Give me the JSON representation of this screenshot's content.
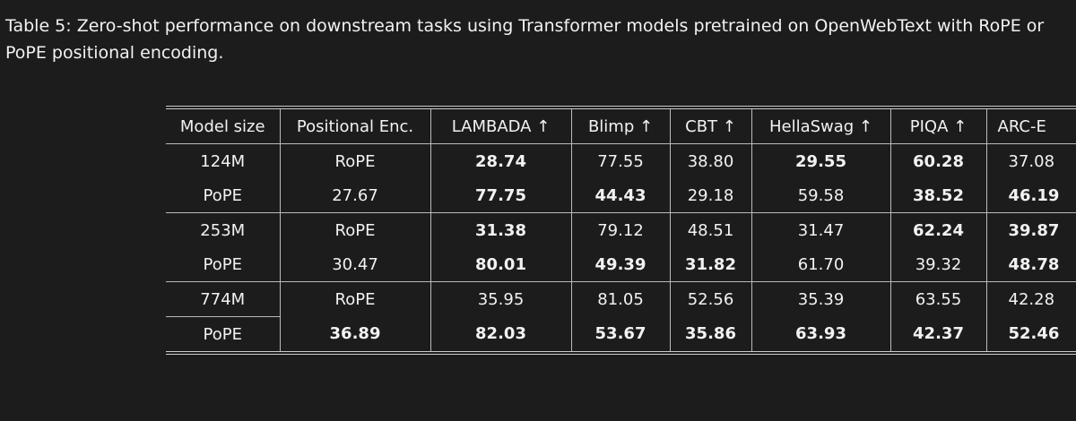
{
  "caption": "Table 5: Zero-shot performance on downstream tasks using Transformer models pretrained on OpenWebText with RoPE or PoPE positional encoding.",
  "table": {
    "header": [
      "Model size",
      "Positional Enc.",
      "LAMBADA ↑",
      "Blimp ↑",
      "CBT ↑",
      "HellaSwag ↑",
      "PIQA ↑",
      "ARC-E"
    ],
    "rows": [
      [
        {
          "text": "124M",
          "bold": false
        },
        {
          "text": "RoPE",
          "bold": false
        },
        {
          "text": "28.74",
          "bold": true
        },
        {
          "text": "77.55",
          "bold": false
        },
        {
          "text": "38.80",
          "bold": false
        },
        {
          "text": "29.55",
          "bold": true
        },
        {
          "text": "60.28",
          "bold": true
        },
        {
          "text": "37.08",
          "bold": false
        }
      ],
      [
        {
          "text": "PoPE",
          "bold": false
        },
        {
          "text": "27.67",
          "bold": false
        },
        {
          "text": "77.75",
          "bold": true
        },
        {
          "text": "44.43",
          "bold": true
        },
        {
          "text": "29.18",
          "bold": false
        },
        {
          "text": "59.58",
          "bold": false
        },
        {
          "text": "38.52",
          "bold": true
        },
        {
          "text": "46.19",
          "bold": true
        }
      ],
      [
        {
          "text": "253M",
          "bold": false
        },
        {
          "text": "RoPE",
          "bold": false
        },
        {
          "text": "31.38",
          "bold": true
        },
        {
          "text": "79.12",
          "bold": false
        },
        {
          "text": "48.51",
          "bold": false
        },
        {
          "text": "31.47",
          "bold": false
        },
        {
          "text": "62.24",
          "bold": true
        },
        {
          "text": "39.87",
          "bold": true
        }
      ],
      [
        {
          "text": "PoPE",
          "bold": false
        },
        {
          "text": "30.47",
          "bold": false
        },
        {
          "text": "80.01",
          "bold": true
        },
        {
          "text": "49.39",
          "bold": true
        },
        {
          "text": "31.82",
          "bold": true
        },
        {
          "text": "61.70",
          "bold": false
        },
        {
          "text": "39.32",
          "bold": false
        },
        {
          "text": "48.78",
          "bold": true
        }
      ],
      [
        {
          "text": "774M",
          "bold": false
        },
        {
          "text": "RoPE",
          "bold": false
        },
        {
          "text": "35.95",
          "bold": false
        },
        {
          "text": "81.05",
          "bold": false
        },
        {
          "text": "52.56",
          "bold": false
        },
        {
          "text": "35.39",
          "bold": false
        },
        {
          "text": "63.55",
          "bold": false
        },
        {
          "text": "42.28",
          "bold": false
        }
      ],
      [
        {
          "text": "PoPE",
          "bold": false
        },
        {
          "text": "36.89",
          "bold": true
        },
        {
          "text": "82.03",
          "bold": true
        },
        {
          "text": "53.67",
          "bold": true
        },
        {
          "text": "35.86",
          "bold": true
        },
        {
          "text": "63.93",
          "bold": true
        },
        {
          "text": "42.37",
          "bold": true
        },
        {
          "text": "52.46",
          "bold": true
        }
      ]
    ]
  }
}
